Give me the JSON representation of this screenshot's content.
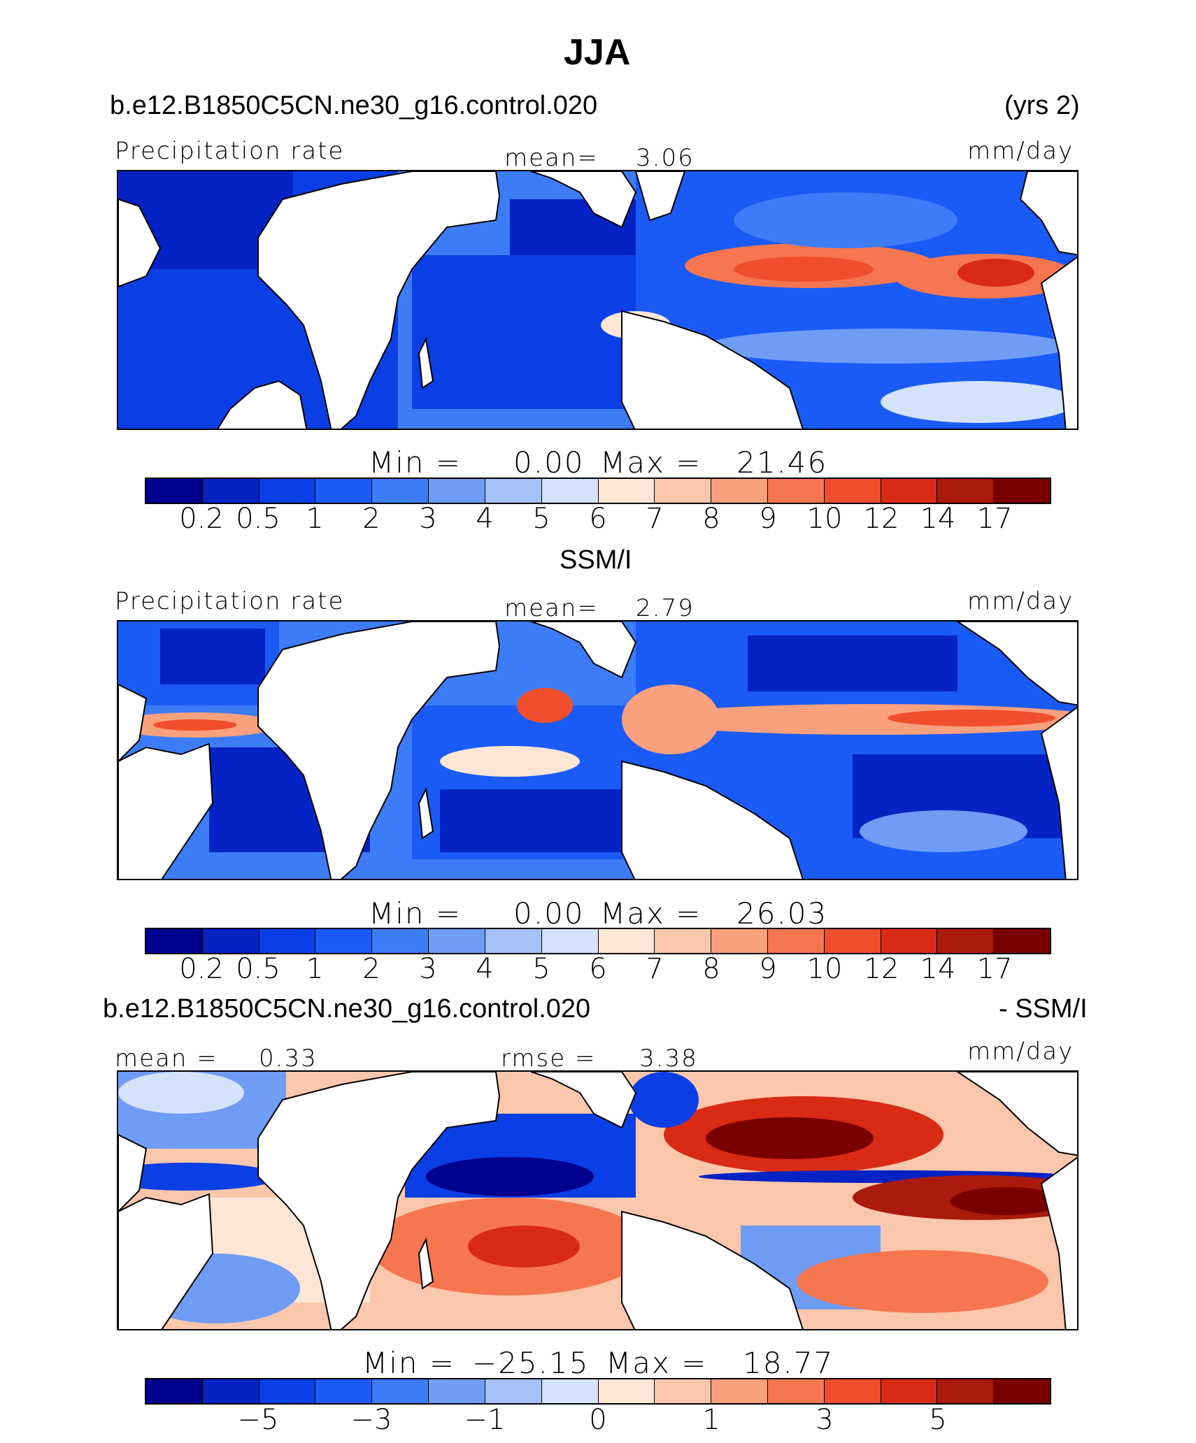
{
  "figure": {
    "season": "JJA",
    "model_case": "b.e12.B1850C5CN.ne30_g16.control.020",
    "years": "(yrs 2)",
    "obs_name": "SSM/I",
    "diff_suffix": "- SSM/I"
  },
  "colors": {
    "scale": [
      "#00008f",
      "#0522c4",
      "#0b3fe6",
      "#1a5bf7",
      "#3d7cf7",
      "#6f9cf5",
      "#a5c1f7",
      "#d4e3fa",
      "#fde6d6",
      "#fbc7ac",
      "#f9a07c",
      "#f6764f",
      "#f04e2d",
      "#d92a13",
      "#aa1a0d",
      "#7a0000"
    ],
    "land": "#ffffff",
    "coast": "#000000"
  },
  "panels": [
    {
      "id": "model",
      "left_label": "Precipitation rate",
      "center_label": "mean=",
      "center_value": "3.06",
      "right_label": "mm/day",
      "min_label": "Min  =",
      "min_value": "0.00",
      "max_label": "Max  =",
      "max_value": "21.46"
    },
    {
      "id": "obs",
      "left_label": "Precipitation rate",
      "center_label": "mean=",
      "center_value": "2.79",
      "right_label": "mm/day",
      "min_label": "Min  =",
      "min_value": "0.00",
      "max_label": "Max  =",
      "max_value": "26.03"
    },
    {
      "id": "diff",
      "left_label": "mean  =",
      "left_value": "0.33",
      "center_label": "rmse  =",
      "center_value": "3.38",
      "right_label": "mm/day",
      "min_label": "Min  =",
      "min_value": "−25.15",
      "max_label": "Max  =",
      "max_value": "18.77"
    }
  ],
  "chart_data": [
    {
      "type": "heatmap",
      "title": "Precipitation rate (model, JJA)",
      "units": "mm/day",
      "mean": 3.06,
      "min": 0.0,
      "max": 21.46,
      "colorbar_levels": [
        0.2,
        0.5,
        1,
        2,
        3,
        4,
        5,
        6,
        7,
        8,
        9,
        10,
        12,
        14,
        17
      ],
      "colorbar_tick_labels": [
        "0.2",
        "0.5",
        "1",
        "2",
        "3",
        "4",
        "5",
        "6",
        "7",
        "8",
        "9",
        "10",
        "12",
        "14",
        "17"
      ]
    },
    {
      "type": "heatmap",
      "title": "Precipitation rate (SSM/I, JJA)",
      "units": "mm/day",
      "mean": 2.79,
      "min": 0.0,
      "max": 26.03,
      "colorbar_levels": [
        0.2,
        0.5,
        1,
        2,
        3,
        4,
        5,
        6,
        7,
        8,
        9,
        10,
        12,
        14,
        17
      ],
      "colorbar_tick_labels": [
        "0.2",
        "0.5",
        "1",
        "2",
        "3",
        "4",
        "5",
        "6",
        "7",
        "8",
        "9",
        "10",
        "12",
        "14",
        "17"
      ]
    },
    {
      "type": "heatmap",
      "title": "Model - SSM/I (JJA)",
      "units": "mm/day",
      "mean": 0.33,
      "rmse": 3.38,
      "min": -25.15,
      "max": 18.77,
      "colorbar_tick_labels": [
        "−5",
        "−3",
        "−1",
        "0",
        "1",
        "3",
        "5"
      ]
    }
  ]
}
